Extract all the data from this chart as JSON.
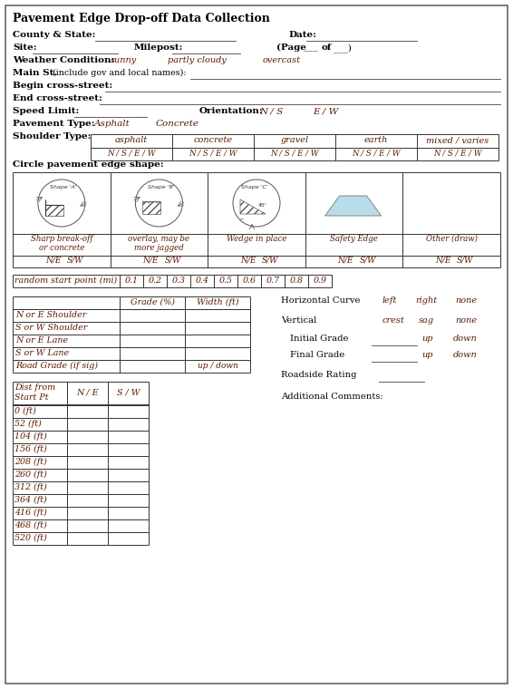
{
  "title": "Pavement Edge Drop-off Data Collection",
  "bg_color": "#ffffff",
  "text_color": "#000000",
  "label_color": "#5a1a00",
  "fig_width": 5.66,
  "fig_height": 7.6,
  "shoulder_types": [
    "asphalt",
    "concrete",
    "gravel",
    "earth",
    "mixed / varies"
  ],
  "random_start_points": [
    "0.1",
    "0.2",
    "0.3",
    "0.4",
    "0.5",
    "0.6",
    "0.7",
    "0.8",
    "0.9"
  ],
  "grade_width_rows": [
    "N or E Shoulder",
    "S or W Shoulder",
    "N or E Lane",
    "S or W Lane",
    "Road Grade (if sig)"
  ],
  "dist_rows": [
    "0 (ft)",
    "52 (ft)",
    "104 (ft)",
    "156 (ft)",
    "208 (ft)",
    "260 (ft)",
    "312 (ft)",
    "364 (ft)",
    "416 (ft)",
    "468 (ft)",
    "520 (ft)"
  ],
  "shape_labels": [
    "Sharp break-off\nor concrete",
    "overlay, may be\nmore jagged",
    "Wedge in place",
    "Safety Edge",
    "Other (draw)"
  ],
  "nsew_labels": [
    "N/E    S/W",
    "N/E    S/W",
    "N/E    S/W",
    "N/E    S/W",
    "N/E    S/W"
  ]
}
